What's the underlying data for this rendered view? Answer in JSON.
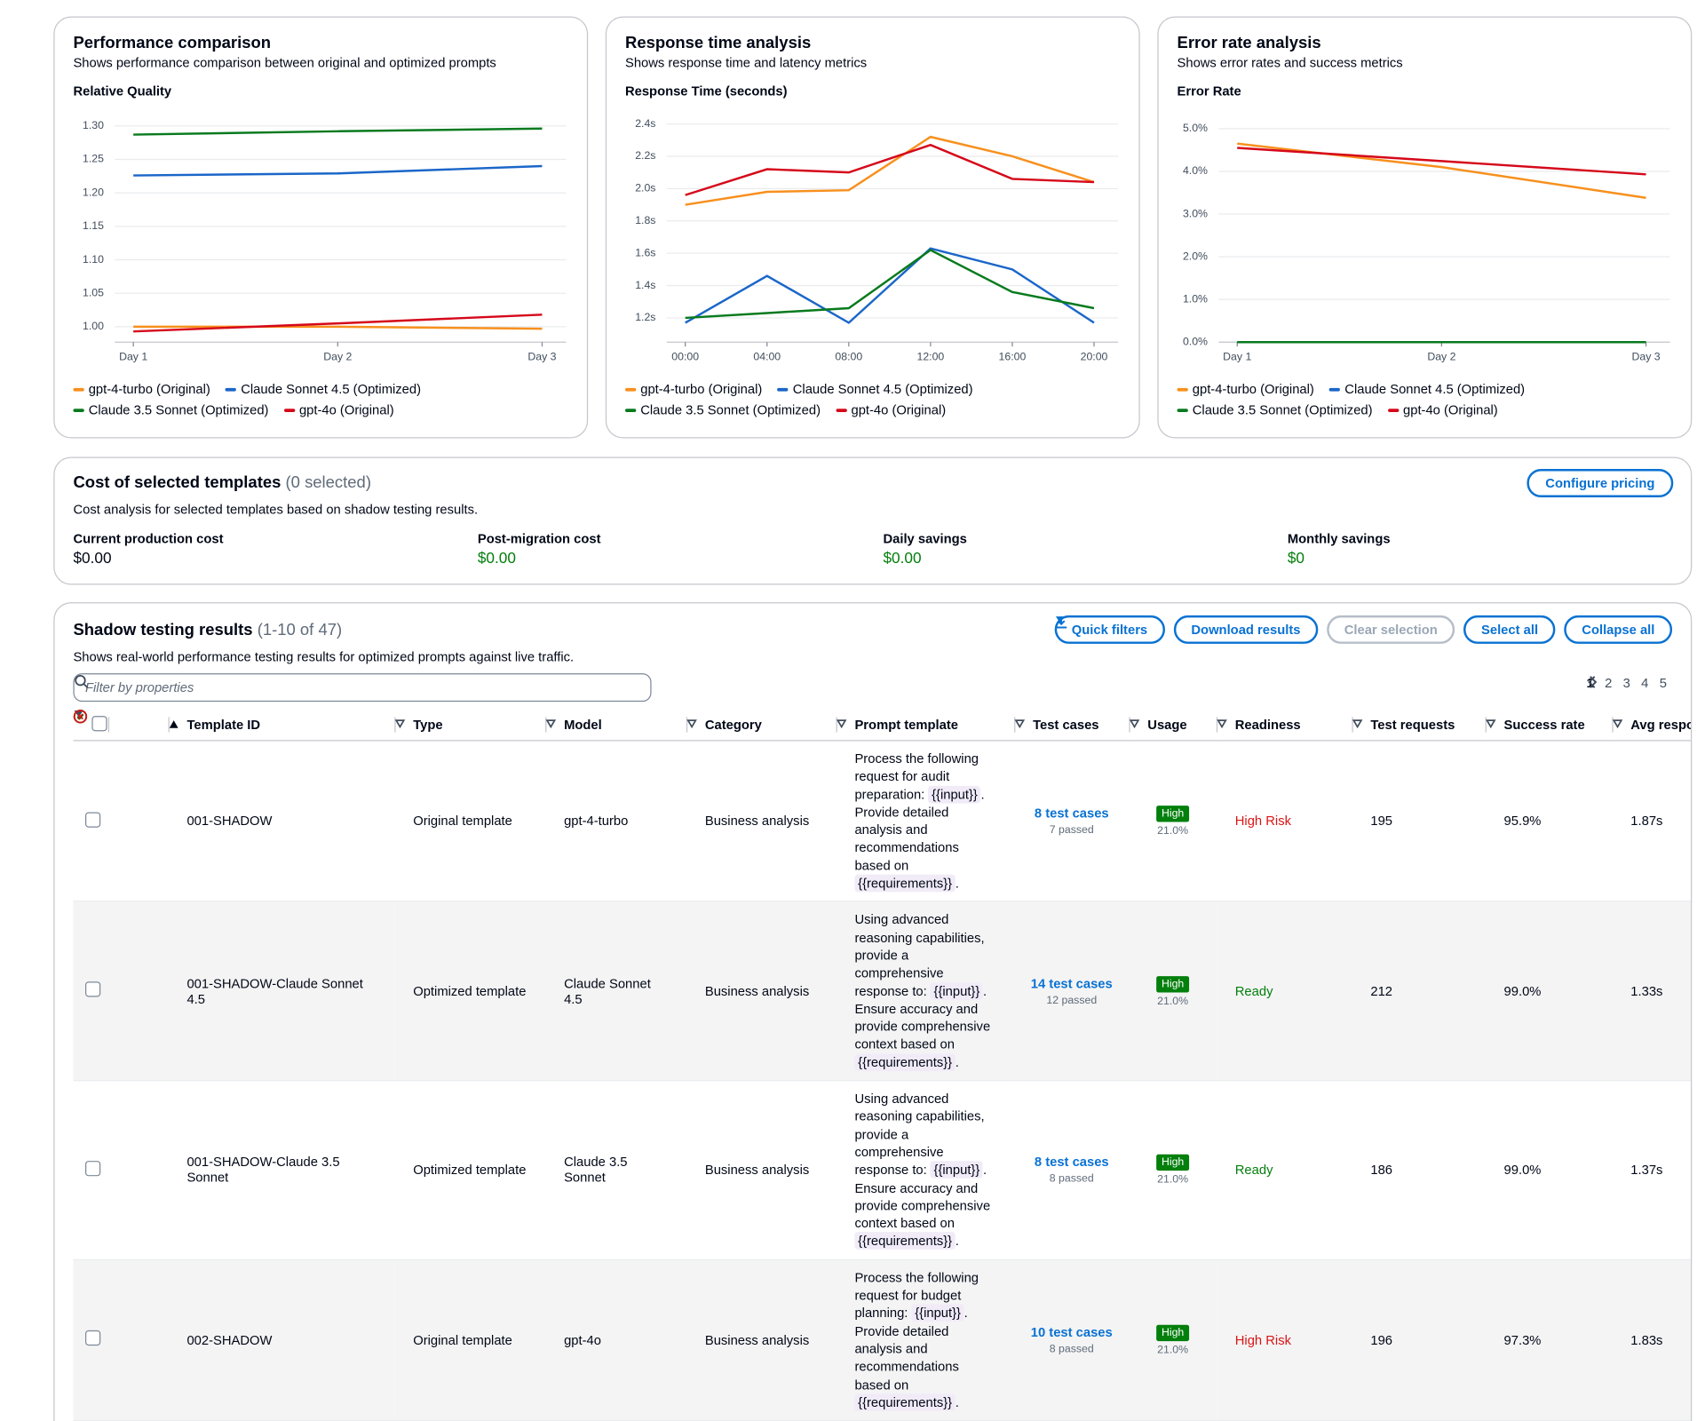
{
  "chart_data": [
    {
      "type": "line",
      "title": "Performance comparison",
      "subtitle": "Shows performance comparison between original and optimized prompts",
      "y_label": "Relative Quality",
      "categories": [
        "Day 1",
        "Day 2",
        "Day 3"
      ],
      "ylim": [
        0.977,
        1.315
      ],
      "yticks": [
        {
          "value": 1.0,
          "label": "1.00"
        },
        {
          "value": 1.05,
          "label": "1.05"
        },
        {
          "value": 1.1,
          "label": "1.10"
        },
        {
          "value": 1.15,
          "label": "1.15"
        },
        {
          "value": 1.2,
          "label": "1.20"
        },
        {
          "value": 1.25,
          "label": "1.25"
        },
        {
          "value": 1.3,
          "label": "1.30"
        }
      ],
      "grid": true,
      "series": [
        {
          "name": "gpt-4-turbo (Original)",
          "color": "#f7901e",
          "values": [
            1.0,
            1.0,
            0.997
          ]
        },
        {
          "name": "Claude Sonnet 4.5 (Optimized)",
          "color": "#1a66c9",
          "values": [
            1.226,
            1.229,
            1.24
          ]
        },
        {
          "name": "Claude 3.5 Sonnet (Optimized)",
          "color": "#087a1e",
          "values": [
            1.287,
            1.292,
            1.296
          ]
        },
        {
          "name": "gpt-4o (Original)",
          "color": "#d5081a",
          "values": [
            0.993,
            1.005,
            1.018
          ]
        }
      ]
    },
    {
      "type": "line",
      "title": "Response time analysis",
      "subtitle": "Shows response time and latency metrics",
      "y_label": "Response Time (seconds)",
      "categories": [
        "00:00",
        "04:00",
        "08:00",
        "12:00",
        "16:00",
        "20:00"
      ],
      "ylim": [
        1.05,
        2.45
      ],
      "yticks": [
        {
          "value": 1.2,
          "label": "1.2s"
        },
        {
          "value": 1.4,
          "label": "1.4s"
        },
        {
          "value": 1.6,
          "label": "1.6s"
        },
        {
          "value": 1.8,
          "label": "1.8s"
        },
        {
          "value": 2.0,
          "label": "2.0s"
        },
        {
          "value": 2.2,
          "label": "2.2s"
        },
        {
          "value": 2.4,
          "label": "2.4s"
        }
      ],
      "grid": true,
      "series": [
        {
          "name": "gpt-4-turbo (Original)",
          "color": "#f7901e",
          "values": [
            1.9,
            1.98,
            1.99,
            2.32,
            2.2,
            2.04
          ]
        },
        {
          "name": "Claude Sonnet 4.5 (Optimized)",
          "color": "#1a66c9",
          "values": [
            1.17,
            1.46,
            1.17,
            1.63,
            1.5,
            1.17
          ]
        },
        {
          "name": "Claude 3.5 Sonnet (Optimized)",
          "color": "#087a1e",
          "values": [
            1.2,
            1.23,
            1.26,
            1.62,
            1.36,
            1.26
          ]
        },
        {
          "name": "gpt-4o (Original)",
          "color": "#d5081a",
          "values": [
            1.96,
            2.12,
            2.1,
            2.27,
            2.06,
            2.04
          ]
        }
      ]
    },
    {
      "type": "line",
      "title": "Error rate analysis",
      "subtitle": "Shows error rates and success metrics",
      "y_label": "Error Rate",
      "categories": [
        "Day 1",
        "Day 2",
        "Day 3"
      ],
      "ylim": [
        0,
        5.3
      ],
      "yticks": [
        {
          "value": 0,
          "label": "0.0%"
        },
        {
          "value": 1,
          "label": "1.0%"
        },
        {
          "value": 2,
          "label": "2.0%"
        },
        {
          "value": 3,
          "label": "3.0%"
        },
        {
          "value": 4,
          "label": "4.0%"
        },
        {
          "value": 5,
          "label": "5.0%"
        }
      ],
      "grid": true,
      "series": [
        {
          "name": "gpt-4-turbo (Original)",
          "color": "#f7901e",
          "values": [
            4.65,
            4.1,
            3.38
          ]
        },
        {
          "name": "Claude Sonnet 4.5 (Optimized)",
          "color": "#1a66c9",
          "values": [
            0,
            0,
            0
          ]
        },
        {
          "name": "Claude 3.5 Sonnet (Optimized)",
          "color": "#087a1e",
          "values": [
            0,
            0,
            0
          ]
        },
        {
          "name": "gpt-4o (Original)",
          "color": "#d5081a",
          "values": [
            4.55,
            4.24,
            3.93
          ]
        }
      ]
    }
  ],
  "cost": {
    "title": "Cost of selected templates",
    "count": "(0 selected)",
    "button": "Configure pricing",
    "subtitle": "Cost analysis for selected templates based on shadow testing results.",
    "metrics": [
      {
        "label": "Current production cost",
        "value": "$0.00",
        "color": "#000716"
      },
      {
        "label": "Post-migration cost",
        "value": "$0.00",
        "color": "#037f0c"
      },
      {
        "label": "Daily savings",
        "value": "$0.00",
        "color": "#037f0c"
      },
      {
        "label": "Monthly savings",
        "value": "$0",
        "color": "#037f0c"
      }
    ]
  },
  "results": {
    "title": "Shadow testing results",
    "count": "(1-10 of 47)",
    "subtitle": "Shows real-world performance testing results for optimized prompts against live traffic.",
    "buttons": [
      "Quick filters",
      "Download results",
      "Clear selection",
      "Select all",
      "Collapse all"
    ],
    "filter_placeholder": "Filter by properties",
    "pages": [
      1,
      2,
      3,
      4,
      5
    ],
    "current_page": 1,
    "columns": [
      {
        "label": "Template ID",
        "sort": "asc"
      },
      {
        "label": "Type",
        "sort": "none"
      },
      {
        "label": "Model",
        "sort": "none"
      },
      {
        "label": "Category",
        "sort": "none"
      },
      {
        "label": "Prompt template",
        "sort": "none"
      },
      {
        "label": "Test cases",
        "sort": "none"
      },
      {
        "label": "Usage",
        "sort": "none"
      },
      {
        "label": "Readiness",
        "sort": "none"
      },
      {
        "label": "Test requests",
        "sort": "none"
      },
      {
        "label": "Success rate",
        "sort": "none"
      },
      {
        "label": "Avg response time",
        "sort": "none"
      }
    ],
    "rows": [
      {
        "expandable": true,
        "id": "001-SHADOW",
        "type": "Original template",
        "model": "gpt-4-turbo",
        "category": "Business analysis",
        "prompt": [
          "Process the following request for audit preparation: ",
          "{{input}}",
          ". Provide detailed analysis and recommendations based on ",
          "{{requirements}}",
          "."
        ],
        "test_cases": "8 test cases",
        "passed": "7 passed",
        "usage": "High",
        "usage_pct": "21.0%",
        "readiness": "High Risk",
        "status": "error",
        "requests": "195",
        "success_rate": "95.9%",
        "avg_response": "1.87s"
      },
      {
        "expandable": false,
        "id": "001-SHADOW-Claude Sonnet 4.5",
        "type": "Optimized template",
        "model": "Claude Sonnet 4.5",
        "category": "Business analysis",
        "prompt": [
          "Using advanced reasoning capabilities, provide a comprehensive response to: ",
          "{{input}}",
          ". Ensure accuracy and provide comprehensive context based on ",
          "{{requirements}}",
          "."
        ],
        "test_cases": "14 test cases",
        "passed": "12 passed",
        "usage": "High",
        "usage_pct": "21.0%",
        "readiness": "Ready",
        "status": "success",
        "requests": "212",
        "success_rate": "99.0%",
        "avg_response": "1.33s"
      },
      {
        "expandable": false,
        "id": "001-SHADOW-Claude 3.5 Sonnet",
        "type": "Optimized template",
        "model": "Claude 3.5 Sonnet",
        "category": "Business analysis",
        "prompt": [
          "Using advanced reasoning capabilities, provide a comprehensive response to: ",
          "{{input}}",
          ". Ensure accuracy and provide comprehensive context based on ",
          "{{requirements}}",
          "."
        ],
        "test_cases": "8 test cases",
        "passed": "8 passed",
        "usage": "High",
        "usage_pct": "21.0%",
        "readiness": "Ready",
        "status": "success",
        "requests": "186",
        "success_rate": "99.0%",
        "avg_response": "1.37s"
      },
      {
        "expandable": true,
        "id": "002-SHADOW",
        "type": "Original template",
        "model": "gpt-4o",
        "category": "Business analysis",
        "prompt": [
          "Process the following request for budget planning: ",
          "{{input}}",
          ". Provide detailed analysis and recommendations based on ",
          "{{requirements}}",
          "."
        ],
        "test_cases": "10 test cases",
        "passed": "8 passed",
        "usage": "High",
        "usage_pct": "21.0%",
        "readiness": "High Risk",
        "status": "error",
        "requests": "196",
        "success_rate": "97.3%",
        "avg_response": "1.83s"
      }
    ]
  }
}
